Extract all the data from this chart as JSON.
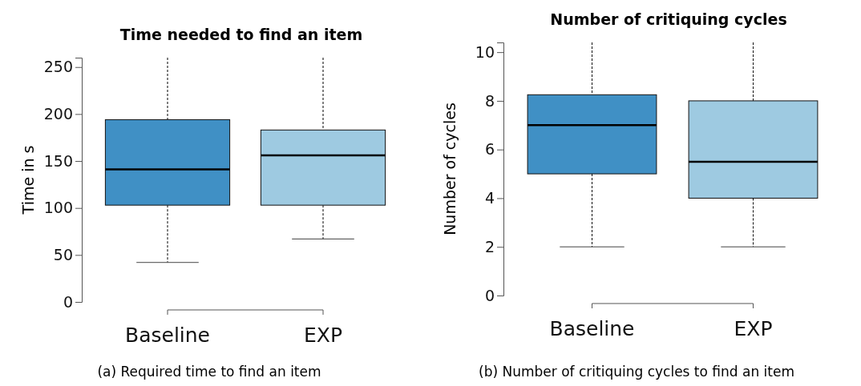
{
  "chart_data": [
    {
      "type": "box",
      "title": "Time needed to find an item",
      "ylabel": "Time in s",
      "categories": [
        "Baseline",
        "EXP"
      ],
      "colors": [
        "#4090c5",
        "#9ecae1"
      ],
      "boxes": [
        {
          "low": 42,
          "q1": 103,
          "median": 141,
          "q3": 194,
          "high": 260
        },
        {
          "low": 67,
          "q1": 103,
          "median": 156,
          "q3": 183,
          "high": 260
        }
      ],
      "ylim": [
        0,
        260
      ],
      "yticks": [
        0,
        50,
        100,
        150,
        200,
        250
      ],
      "grid": false,
      "annotations": [
        "(a) Required time to find an item"
      ]
    },
    {
      "type": "box",
      "title": "Number of critiquing cycles",
      "ylabel": "Number of cycles",
      "categories": [
        "Baseline",
        "EXP"
      ],
      "colors": [
        "#4090c5",
        "#9ecae1"
      ],
      "boxes": [
        {
          "low": 2,
          "q1": 5,
          "median": 7,
          "q3": 8.25,
          "high": 10.4
        },
        {
          "low": 2,
          "q1": 4,
          "median": 5.5,
          "q3": 8,
          "high": 10.4
        }
      ],
      "ylim": [
        0,
        10.4
      ],
      "yticks": [
        0,
        2,
        4,
        6,
        8,
        10
      ],
      "grid": false,
      "annotations": [
        "(b) Number of critiquing cycles to find an item"
      ]
    }
  ]
}
